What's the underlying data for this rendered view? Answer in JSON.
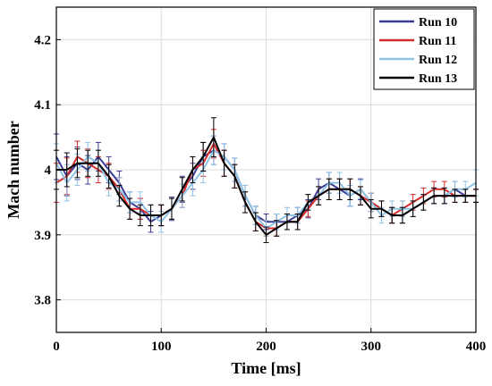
{
  "chart_data": {
    "type": "line",
    "xlabel": "Time [ms]",
    "ylabel": "Mach number",
    "xlim": [
      0,
      400
    ],
    "ylim": [
      3.75,
      4.25
    ],
    "xticks": [
      "0",
      "100",
      "200",
      "300",
      "400"
    ],
    "yticks": [
      "3.8",
      "3.9",
      "4",
      "4.1",
      "4.2"
    ],
    "grid": true,
    "legend_position": "top-right",
    "error_bars": true,
    "colors": {
      "run10": "#3c3c96",
      "run11": "#d62b2b",
      "run12": "#8ec3e6",
      "run13": "#000000"
    },
    "x": [
      0,
      10,
      20,
      30,
      40,
      50,
      60,
      70,
      80,
      90,
      100,
      110,
      120,
      130,
      140,
      150,
      160,
      170,
      180,
      190,
      200,
      210,
      220,
      230,
      240,
      250,
      260,
      270,
      280,
      290,
      300,
      310,
      320,
      330,
      340,
      350,
      360,
      370,
      380,
      390,
      400
    ],
    "series": [
      {
        "name": "Run 10",
        "values": [
          4.02,
          3.99,
          4.01,
          4.0,
          4.02,
          4.0,
          3.98,
          3.95,
          3.94,
          3.92,
          3.93,
          3.94,
          3.97,
          3.99,
          4.02,
          4.03,
          4.02,
          4.0,
          3.96,
          3.93,
          3.92,
          3.92,
          3.92,
          3.93,
          3.94,
          3.97,
          3.98,
          3.97,
          3.96,
          3.97,
          3.95,
          3.94,
          3.93,
          3.93,
          3.94,
          3.95,
          3.96,
          3.96,
          3.97,
          3.96,
          3.96
        ],
        "errors": [
          0.035,
          0.03,
          0.025,
          0.022,
          0.022,
          0.02,
          0.018,
          0.016,
          0.016,
          0.016,
          0.016,
          0.018,
          0.02,
          0.02,
          0.022,
          0.022,
          0.02,
          0.018,
          0.016,
          0.014,
          0.012,
          0.012,
          0.012,
          0.012,
          0.014,
          0.016,
          0.016,
          0.016,
          0.016,
          0.016,
          0.014,
          0.012,
          0.012,
          0.012,
          0.012,
          0.012,
          0.012,
          0.012,
          0.012,
          0.01,
          0.01
        ]
      },
      {
        "name": "Run 11",
        "values": [
          3.98,
          3.99,
          4.02,
          4.01,
          4.0,
          3.99,
          3.97,
          3.94,
          3.94,
          3.93,
          3.93,
          3.94,
          3.96,
          4.0,
          4.01,
          4.04,
          4.01,
          3.99,
          3.95,
          3.92,
          3.91,
          3.91,
          3.92,
          3.92,
          3.94,
          3.96,
          3.97,
          3.97,
          3.97,
          3.96,
          3.95,
          3.94,
          3.93,
          3.94,
          3.95,
          3.96,
          3.97,
          3.97,
          3.96,
          3.96,
          3.96
        ],
        "errors": [
          0.03,
          0.028,
          0.024,
          0.022,
          0.02,
          0.02,
          0.018,
          0.016,
          0.016,
          0.016,
          0.016,
          0.016,
          0.018,
          0.02,
          0.02,
          0.022,
          0.02,
          0.018,
          0.016,
          0.014,
          0.012,
          0.012,
          0.012,
          0.012,
          0.012,
          0.014,
          0.016,
          0.016,
          0.016,
          0.014,
          0.014,
          0.012,
          0.012,
          0.012,
          0.012,
          0.012,
          0.012,
          0.012,
          0.01,
          0.01,
          0.01
        ]
      },
      {
        "name": "Run 12",
        "values": [
          4.01,
          3.98,
          4.0,
          4.02,
          4.01,
          3.98,
          3.97,
          3.95,
          3.95,
          3.93,
          3.92,
          3.94,
          3.96,
          3.98,
          4.0,
          4.03,
          4.02,
          4.0,
          3.96,
          3.93,
          3.91,
          3.92,
          3.93,
          3.93,
          3.95,
          3.96,
          3.98,
          3.98,
          3.96,
          3.97,
          3.95,
          3.93,
          3.94,
          3.94,
          3.94,
          3.95,
          3.96,
          3.96,
          3.97,
          3.97,
          3.98
        ],
        "errors": [
          0.03,
          0.028,
          0.024,
          0.022,
          0.02,
          0.02,
          0.018,
          0.016,
          0.016,
          0.016,
          0.016,
          0.016,
          0.018,
          0.02,
          0.02,
          0.022,
          0.02,
          0.018,
          0.016,
          0.014,
          0.012,
          0.012,
          0.012,
          0.012,
          0.012,
          0.014,
          0.016,
          0.016,
          0.016,
          0.014,
          0.014,
          0.012,
          0.012,
          0.012,
          0.012,
          0.012,
          0.012,
          0.012,
          0.012,
          0.012,
          0.02
        ]
      },
      {
        "name": "Run 13",
        "values": [
          4.0,
          4.0,
          4.01,
          4.01,
          4.01,
          3.99,
          3.96,
          3.94,
          3.93,
          3.93,
          3.93,
          3.94,
          3.97,
          4.0,
          4.02,
          4.05,
          4.01,
          3.99,
          3.95,
          3.92,
          3.9,
          3.91,
          3.92,
          3.92,
          3.95,
          3.96,
          3.97,
          3.97,
          3.97,
          3.96,
          3.94,
          3.94,
          3.93,
          3.93,
          3.94,
          3.95,
          3.96,
          3.96,
          3.96,
          3.96,
          3.96
        ],
        "errors": [
          0.03,
          0.026,
          0.022,
          0.02,
          0.02,
          0.018,
          0.016,
          0.016,
          0.016,
          0.016,
          0.016,
          0.016,
          0.018,
          0.02,
          0.022,
          0.03,
          0.02,
          0.018,
          0.016,
          0.014,
          0.012,
          0.012,
          0.012,
          0.012,
          0.012,
          0.014,
          0.016,
          0.016,
          0.016,
          0.014,
          0.014,
          0.012,
          0.012,
          0.012,
          0.012,
          0.012,
          0.012,
          0.012,
          0.01,
          0.01,
          0.01
        ]
      }
    ]
  }
}
